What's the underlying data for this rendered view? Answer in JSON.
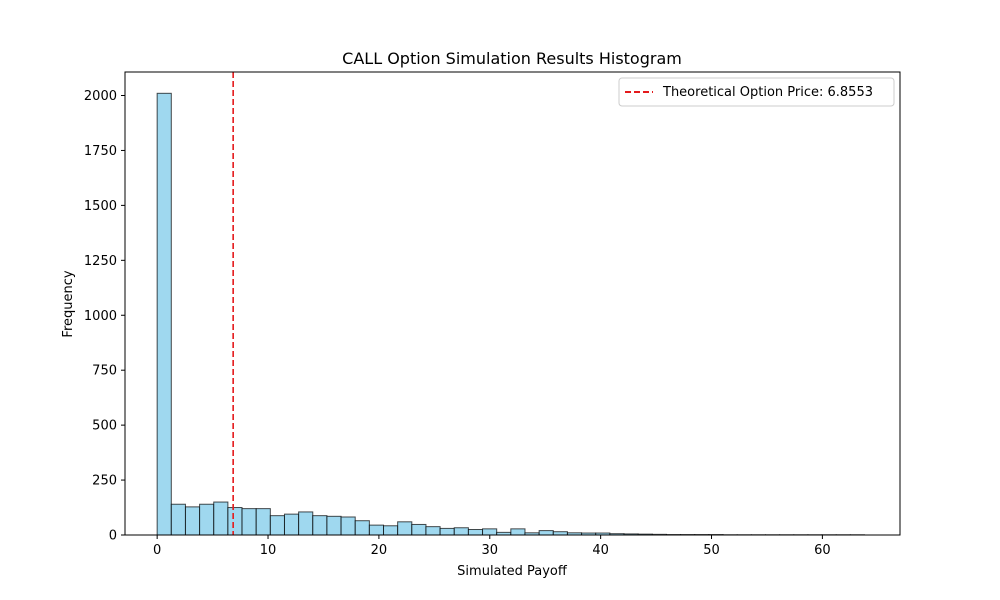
{
  "chart_data": {
    "type": "bar",
    "title": "CALL Option Simulation Results Histogram",
    "xlabel": "Simulated Payoff",
    "ylabel": "Frequency",
    "xlim": [
      -2.9,
      67.0
    ],
    "ylim": [
      0,
      2107
    ],
    "x_ticks": [
      0,
      10,
      20,
      30,
      40,
      50,
      60
    ],
    "y_ticks": [
      0,
      250,
      500,
      750,
      1000,
      1250,
      1500,
      1750,
      2000
    ],
    "grid": false,
    "bin_width": 1.276,
    "bin_edges_start": 0,
    "values": [
      2010,
      140,
      128,
      140,
      150,
      125,
      120,
      120,
      88,
      95,
      105,
      88,
      85,
      82,
      65,
      45,
      42,
      60,
      48,
      38,
      30,
      33,
      25,
      28,
      12,
      28,
      10,
      20,
      15,
      10,
      9,
      9,
      6,
      5,
      4,
      3,
      2,
      2,
      2,
      2,
      1,
      1,
      1,
      1,
      1,
      1,
      1,
      1,
      1,
      1
    ],
    "bar_color": "#87CEEB",
    "bar_edge_color": "#000000",
    "reference_line": {
      "x": 6.8553,
      "label": "Theoretical Option Price: 6.8553",
      "color": "#e41a1c",
      "style": "dashed"
    },
    "legend_position": "top-right"
  }
}
